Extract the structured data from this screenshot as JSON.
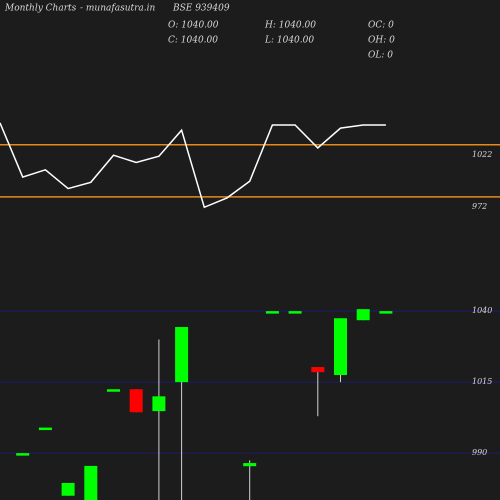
{
  "header": {
    "left": "Monthly Charts",
    "site": "- munafasutra.in",
    "symbol": "BSE 939409",
    "stats": [
      [
        "O: 1040.00",
        "C: 1040.00"
      ],
      [
        "H: 1040.00",
        "L: 1040.00"
      ],
      [
        "OC: 0",
        "OH: 0",
        "OL: 0"
      ]
    ]
  },
  "chart_data": [
    {
      "type": "line",
      "categories": [
        null,
        null,
        null,
        null,
        null,
        null,
        null,
        null,
        null,
        null,
        null,
        null,
        null,
        null,
        null,
        null,
        null,
        null
      ],
      "values": [
        1043,
        991,
        998,
        980,
        986,
        1012,
        1005,
        1011,
        1036,
        962,
        971,
        987,
        1041,
        1041,
        1019,
        1038,
        1041,
        1041
      ],
      "color": "#ffffff",
      "tick_color": "#e8891a",
      "ylim": [
        921,
        1065
      ],
      "yticks": [
        1022,
        972
      ]
    },
    {
      "type": "candlestick",
      "categories": [
        null,
        null,
        null,
        null,
        null,
        null,
        null,
        null,
        null,
        null,
        null,
        null,
        null,
        null,
        null,
        null,
        null,
        null
      ],
      "open": [
        null,
        990,
        999,
        975,
        973,
        1012.5,
        1012.5,
        1004.8,
        1015,
        null,
        null,
        985.4,
        1040,
        1040,
        1020.3,
        1017.5,
        1036.8,
        1040
      ],
      "high": [
        null,
        990,
        999,
        979.5,
        985.5,
        1012.5,
        1012.5,
        1030,
        1034.4,
        null,
        null,
        987.5,
        1040,
        1040,
        1020.3,
        1037.5,
        1040.7,
        1040
      ],
      "low": [
        null,
        990,
        999,
        975,
        973,
        1012.5,
        1004.4,
        973,
        973,
        null,
        null,
        973,
        1040,
        1040,
        1003,
        1015,
        1036.8,
        1040
      ],
      "close": [
        null,
        990,
        999,
        979.5,
        985.5,
        1012.5,
        1004.4,
        1010,
        1034.4,
        null,
        null,
        986.5,
        1040,
        1040,
        1018.5,
        1037.5,
        1040.7,
        1040
      ],
      "up_color": "#00ff00",
      "down_color": "#ff0000",
      "tick_color": "#1c1c6e",
      "ylim": [
        973.5,
        1058
      ],
      "yticks": [
        1040,
        1015,
        990
      ]
    }
  ]
}
